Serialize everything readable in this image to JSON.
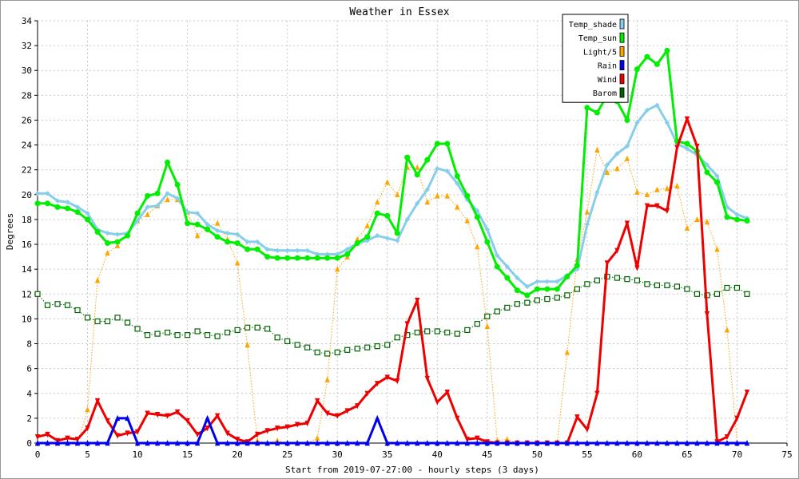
{
  "chart_data": {
    "type": "line",
    "title": "Weather in Essex",
    "xlabel": "Start from 2019-07-27:00 - hourly steps (3 days)",
    "ylabel": "Degrees",
    "xlim": [
      0,
      75
    ],
    "ylim": [
      0,
      34
    ],
    "x_ticks": [
      0,
      5,
      10,
      15,
      20,
      25,
      30,
      35,
      40,
      45,
      50,
      55,
      60,
      65,
      70,
      75
    ],
    "y_ticks": [
      0,
      2,
      4,
      6,
      8,
      10,
      12,
      14,
      16,
      18,
      20,
      22,
      24,
      26,
      28,
      30,
      32,
      34
    ],
    "grid": true,
    "legend_position": "top-right",
    "series": [
      {
        "name": "Temp_shade",
        "color": "#87ceeb",
        "marker": "diamond",
        "line": "solid",
        "width": 3,
        "values": [
          20.1,
          20.1,
          19.5,
          19.4,
          19.0,
          18.5,
          17.2,
          16.9,
          16.8,
          16.9,
          17.9,
          19.0,
          19.1,
          20.1,
          19.7,
          18.6,
          18.5,
          17.6,
          17.1,
          16.9,
          16.8,
          16.2,
          16.2,
          15.6,
          15.5,
          15.5,
          15.5,
          15.5,
          15.2,
          15.2,
          15.2,
          15.6,
          16.1,
          16.3,
          16.7,
          16.5,
          16.3,
          18.0,
          19.3,
          20.4,
          22.1,
          21.9,
          20.9,
          19.6,
          18.7,
          17.2,
          15.1,
          14.2,
          13.3,
          12.6,
          13.0,
          13.0,
          13.0,
          13.5,
          14.0,
          17.6,
          20.2,
          22.4,
          23.3,
          23.9,
          25.8,
          26.8,
          27.2,
          25.8,
          24.1,
          23.7,
          23.2,
          22.4,
          21.5,
          19.0,
          18.4,
          18.1
        ]
      },
      {
        "name": "Temp_sun",
        "color": "#00ee00",
        "marker": "circle",
        "line": "solid",
        "width": 3,
        "values": [
          19.3,
          19.3,
          19.0,
          18.9,
          18.6,
          18.0,
          17.0,
          16.1,
          16.2,
          16.7,
          18.5,
          19.9,
          20.1,
          22.6,
          20.8,
          17.7,
          17.6,
          17.2,
          16.6,
          16.2,
          16.1,
          15.6,
          15.6,
          15.0,
          14.9,
          14.9,
          14.9,
          14.9,
          14.9,
          14.9,
          14.9,
          15.2,
          16.1,
          16.6,
          18.5,
          18.3,
          16.9,
          23.0,
          21.6,
          22.8,
          24.1,
          24.1,
          21.5,
          19.9,
          18.2,
          16.2,
          14.2,
          13.3,
          12.3,
          11.9,
          12.4,
          12.4,
          12.4,
          13.4,
          14.3,
          27.0,
          26.6,
          28.0,
          27.5,
          26.0,
          30.1,
          31.1,
          30.5,
          31.6,
          24.3,
          24.1,
          23.5,
          21.8,
          21.0,
          18.2,
          18.0,
          17.9
        ]
      },
      {
        "name": "Light/5",
        "color": "#ffa500",
        "marker": "triangle-up",
        "line": "dotted",
        "width": 1,
        "values": [
          0.0,
          0.0,
          0.0,
          0.0,
          0.0,
          2.7,
          13.1,
          15.3,
          15.9,
          16.8,
          17.9,
          18.4,
          19.1,
          19.6,
          19.6,
          18.6,
          16.7,
          17.4,
          17.7,
          16.4,
          14.5,
          7.9,
          0.2,
          0.0,
          0.2,
          0.0,
          0.0,
          0.0,
          0.4,
          5.1,
          14.0,
          15.0,
          16.4,
          17.5,
          19.4,
          21.0,
          20.0,
          22.2,
          22.2,
          19.4,
          19.9,
          19.9,
          19.0,
          17.9,
          15.8,
          9.4,
          0.2,
          0.3,
          0.0,
          0.0,
          0.0,
          0.0,
          0.0,
          7.3,
          14.8,
          18.6,
          23.6,
          21.8,
          22.1,
          22.9,
          20.2,
          20.0,
          20.4,
          20.5,
          20.7,
          17.3,
          18.0,
          17.8,
          15.6,
          9.1,
          0.0,
          0.0
        ]
      },
      {
        "name": "Rain",
        "color": "#0000ee",
        "marker": "triangle-up",
        "line": "solid",
        "width": 3,
        "values": [
          0,
          0,
          0,
          0,
          0,
          0,
          0,
          0,
          2.0,
          2.0,
          0,
          0,
          0,
          0,
          0,
          0,
          0,
          2.0,
          0,
          0,
          0,
          0,
          0,
          0,
          0,
          0,
          0,
          0,
          0,
          0,
          0,
          0,
          0,
          0,
          2.0,
          0,
          0,
          0,
          0,
          0,
          0,
          0,
          0,
          0,
          0,
          0,
          0,
          0,
          0,
          0,
          0,
          0,
          0,
          0,
          0,
          0,
          0,
          0,
          0,
          0,
          0,
          0,
          0,
          0,
          0,
          0,
          0,
          0,
          0,
          0,
          0,
          0
        ]
      },
      {
        "name": "Wind",
        "color": "#ee0000",
        "marker": "triangle-down",
        "line": "solid",
        "width": 3,
        "values": [
          0.5,
          0.7,
          0.2,
          0.4,
          0.3,
          1.2,
          3.4,
          1.8,
          0.6,
          0.8,
          0.9,
          2.4,
          2.3,
          2.2,
          2.5,
          1.8,
          0.7,
          1.2,
          2.2,
          0.8,
          0.3,
          0.1,
          0.7,
          1.0,
          1.2,
          1.3,
          1.5,
          1.6,
          3.4,
          2.4,
          2.2,
          2.6,
          3.0,
          4.0,
          4.8,
          5.3,
          5.0,
          9.6,
          11.5,
          5.2,
          3.3,
          4.1,
          2.0,
          0.3,
          0.4,
          0.1,
          0.0,
          0.0,
          0.0,
          0.0,
          0.0,
          0.0,
          0.0,
          0.0,
          2.1,
          1.1,
          4.0,
          14.5,
          15.5,
          17.7,
          14.1,
          19.1,
          19.1,
          18.7,
          23.8,
          26.1,
          23.9,
          10.4,
          0.1,
          0.5,
          2.0,
          4.1
        ]
      },
      {
        "name": "Barom",
        "color": "#006400",
        "marker": "square",
        "line": "dotted",
        "width": 1,
        "values": [
          12.0,
          11.1,
          11.2,
          11.1,
          10.7,
          10.1,
          9.8,
          9.8,
          10.1,
          9.7,
          9.2,
          8.7,
          8.8,
          8.9,
          8.7,
          8.7,
          9.0,
          8.7,
          8.6,
          8.9,
          9.1,
          9.3,
          9.3,
          9.2,
          8.5,
          8.2,
          7.9,
          7.7,
          7.3,
          7.2,
          7.3,
          7.5,
          7.6,
          7.7,
          7.8,
          7.9,
          8.5,
          8.7,
          8.9,
          9.0,
          9.0,
          8.9,
          8.8,
          9.1,
          9.6,
          10.2,
          10.6,
          10.9,
          11.2,
          11.3,
          11.5,
          11.6,
          11.7,
          11.9,
          12.4,
          12.8,
          13.1,
          13.4,
          13.3,
          13.2,
          13.1,
          12.8,
          12.7,
          12.7,
          12.6,
          12.4,
          12.0,
          11.9,
          12.0,
          12.5,
          12.5,
          12.0
        ]
      }
    ]
  }
}
